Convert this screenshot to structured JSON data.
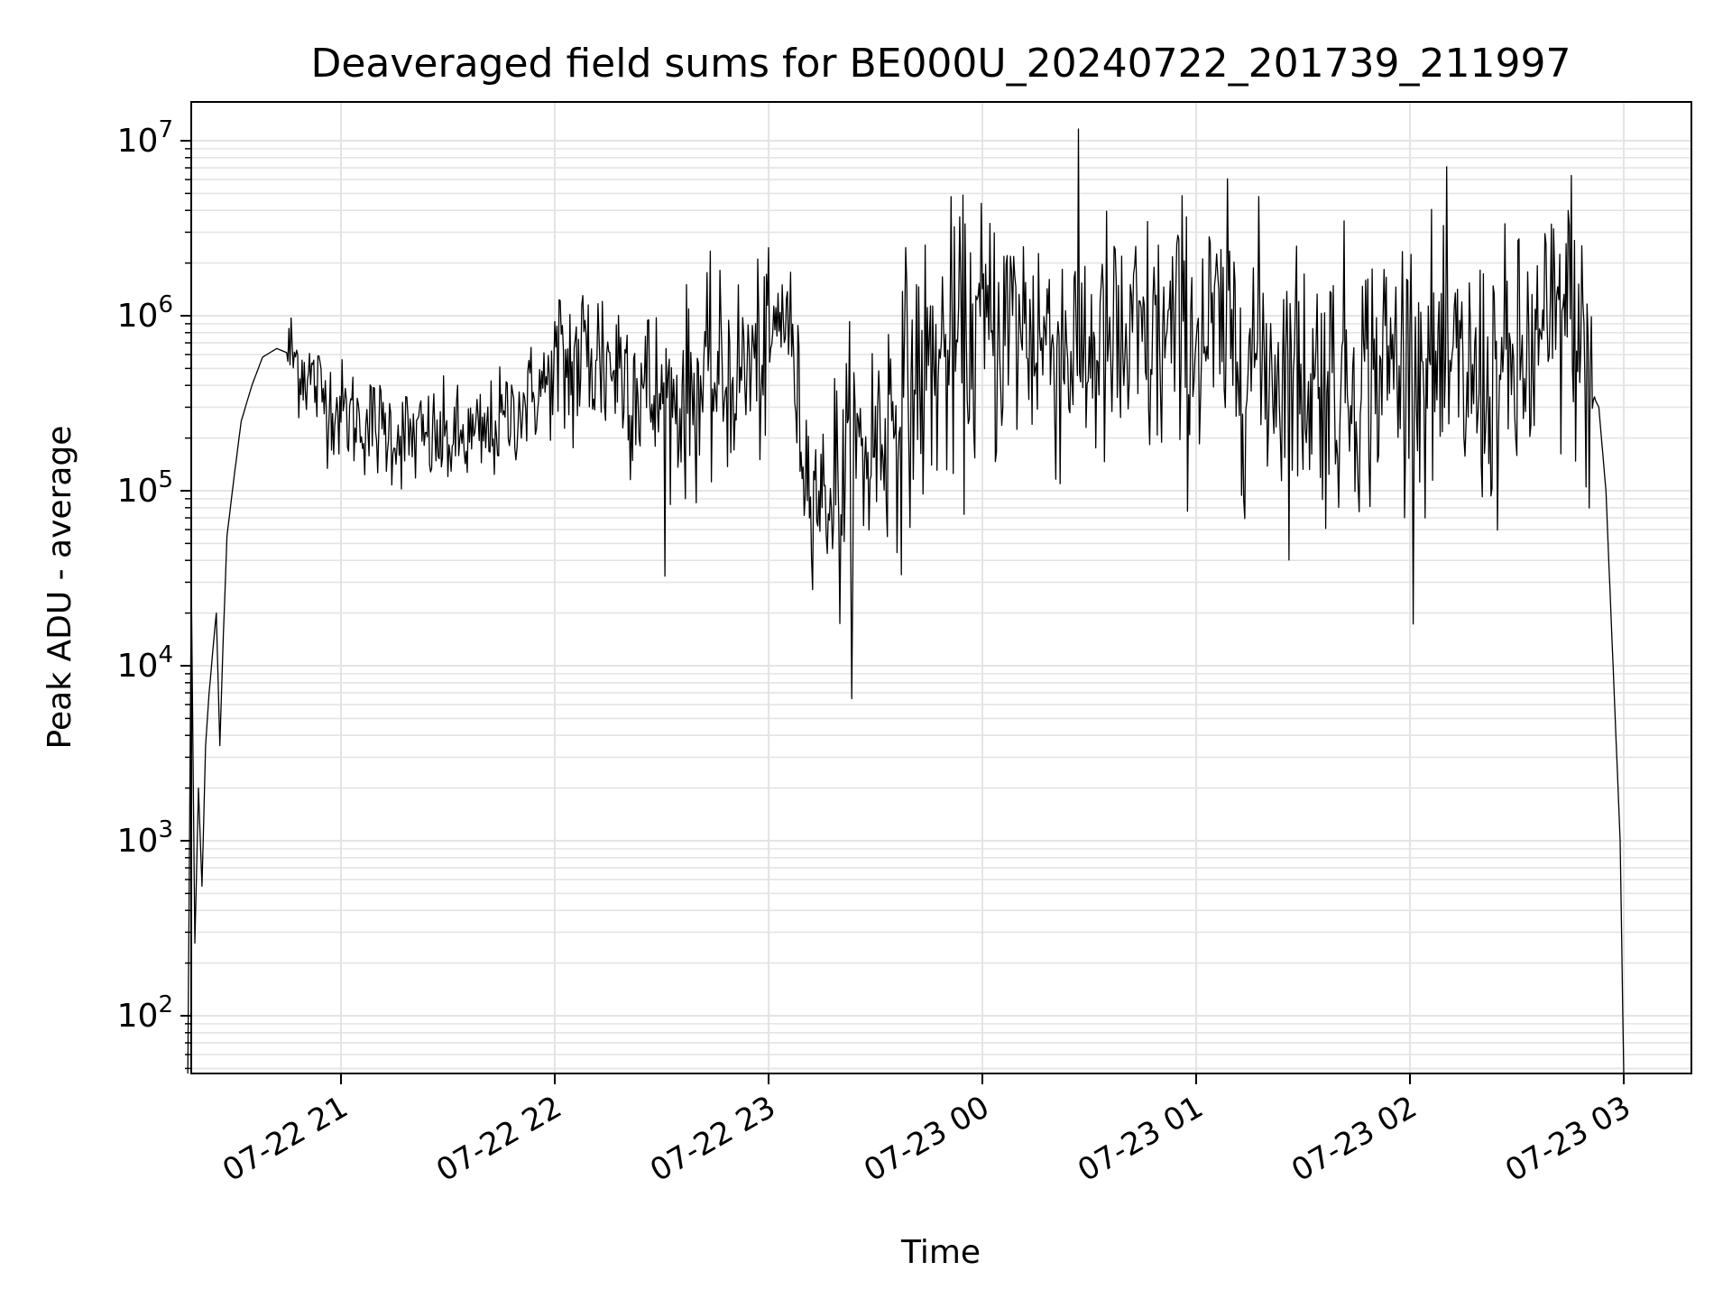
{
  "chart_data": {
    "type": "line",
    "title": "Deaveraged field sums for BE000U_20240722_201739_211997",
    "xlabel": "Time",
    "ylabel": "Peak ADU - average",
    "x_ticks": [
      "07-22 21",
      "07-22 22",
      "07-22 23",
      "07-23 00",
      "07-23 01",
      "07-23 02",
      "07-23 03"
    ],
    "y_ticks": [
      {
        "value": 100,
        "base": "10",
        "exp": "2"
      },
      {
        "value": 1000,
        "base": "10",
        "exp": "3"
      },
      {
        "value": 10000,
        "base": "10",
        "exp": "4"
      },
      {
        "value": 100000,
        "base": "10",
        "exp": "5"
      },
      {
        "value": 1000000,
        "base": "10",
        "exp": "6"
      },
      {
        "value": 10000000,
        "base": "10",
        "exp": "7"
      }
    ],
    "xlim": [
      "2024-07-22 20:17",
      "2024-07-23 03:10"
    ],
    "ylim": [
      42,
      16000000
    ],
    "yscale": "log",
    "grid": "on (major and minor)",
    "line_color": "#000000",
    "series": [
      {
        "points": [
          [
            "2024-07-22 20:17",
            40
          ],
          [
            "2024-07-22 20:18",
            30000
          ],
          [
            "2024-07-22 20:19",
            260
          ],
          [
            "2024-07-22 20:20",
            2000
          ],
          [
            "2024-07-22 20:21",
            550
          ],
          [
            "2024-07-22 20:22",
            3500
          ],
          [
            "2024-07-22 20:23",
            7000
          ],
          [
            "2024-07-22 20:24",
            12000
          ],
          [
            "2024-07-22 20:25",
            20000
          ],
          [
            "2024-07-22 20:26",
            3500
          ],
          [
            "2024-07-22 20:27",
            15000
          ],
          [
            "2024-07-22 20:28",
            55000
          ],
          [
            "2024-07-22 20:30",
            120000
          ],
          [
            "2024-07-22 20:32",
            250000
          ],
          [
            "2024-07-22 20:35",
            400000
          ],
          [
            "2024-07-22 20:38",
            580000
          ],
          [
            "2024-07-22 20:42",
            650000
          ],
          [
            "2024-07-22 20:46",
            600000
          ],
          [
            "2024-07-22 20:50",
            480000
          ],
          [
            "2024-07-22 20:55",
            350000
          ],
          [
            "2024-07-22 21:00",
            280000
          ],
          [
            "2024-07-22 21:10",
            230000
          ],
          [
            "2024-07-22 21:20",
            200000
          ],
          [
            "2024-07-22 21:30",
            190000
          ],
          [
            "2024-07-22 21:40",
            200000
          ],
          [
            "2024-07-22 21:50",
            300000
          ],
          [
            "2024-07-22 22:00",
            450000
          ],
          [
            "2024-07-22 22:10",
            600000
          ],
          [
            "2024-07-22 22:20",
            500000
          ],
          [
            "2024-07-22 22:30",
            300000
          ],
          [
            "2024-07-22 22:40",
            380000
          ],
          [
            "2024-07-22 22:50",
            450000
          ],
          [
            "2024-07-22 23:00",
            600000
          ],
          [
            "2024-07-22 23:05",
            1200000
          ],
          [
            "2024-07-22 23:10",
            150000
          ],
          [
            "2024-07-22 23:15",
            90000
          ],
          [
            "2024-07-22 23:20",
            100000
          ],
          [
            "2024-07-22 23:30",
            200000
          ],
          [
            "2024-07-22 23:40",
            400000
          ],
          [
            "2024-07-22 23:50",
            600000
          ],
          [
            "2024-07-23 00:00",
            800000
          ],
          [
            "2024-07-23 00:10",
            900000
          ],
          [
            "2024-07-23 00:20",
            700000
          ],
          [
            "2024-07-23 00:30",
            650000
          ],
          [
            "2024-07-23 00:40",
            600000
          ],
          [
            "2024-07-23 00:50",
            700000
          ],
          [
            "2024-07-23 01:00",
            800000
          ],
          [
            "2024-07-23 01:10",
            700000
          ],
          [
            "2024-07-23 01:20",
            550000
          ],
          [
            "2024-07-23 01:30",
            450000
          ],
          [
            "2024-07-23 01:40",
            420000
          ],
          [
            "2024-07-23 01:50",
            500000
          ],
          [
            "2024-07-23 02:00",
            600000
          ],
          [
            "2024-07-23 02:10",
            450000
          ],
          [
            "2024-07-23 02:20",
            400000
          ],
          [
            "2024-07-23 02:30",
            450000
          ],
          [
            "2024-07-23 02:40",
            800000
          ],
          [
            "2024-07-23 02:45",
            1300000
          ],
          [
            "2024-07-23 02:50",
            400000
          ],
          [
            "2024-07-23 02:53",
            300000
          ],
          [
            "2024-07-23 02:55",
            100000
          ],
          [
            "2024-07-23 02:57",
            10000
          ],
          [
            "2024-07-23 02:59",
            1000
          ],
          [
            "2024-07-23 03:00",
            42
          ]
        ]
      }
    ]
  }
}
